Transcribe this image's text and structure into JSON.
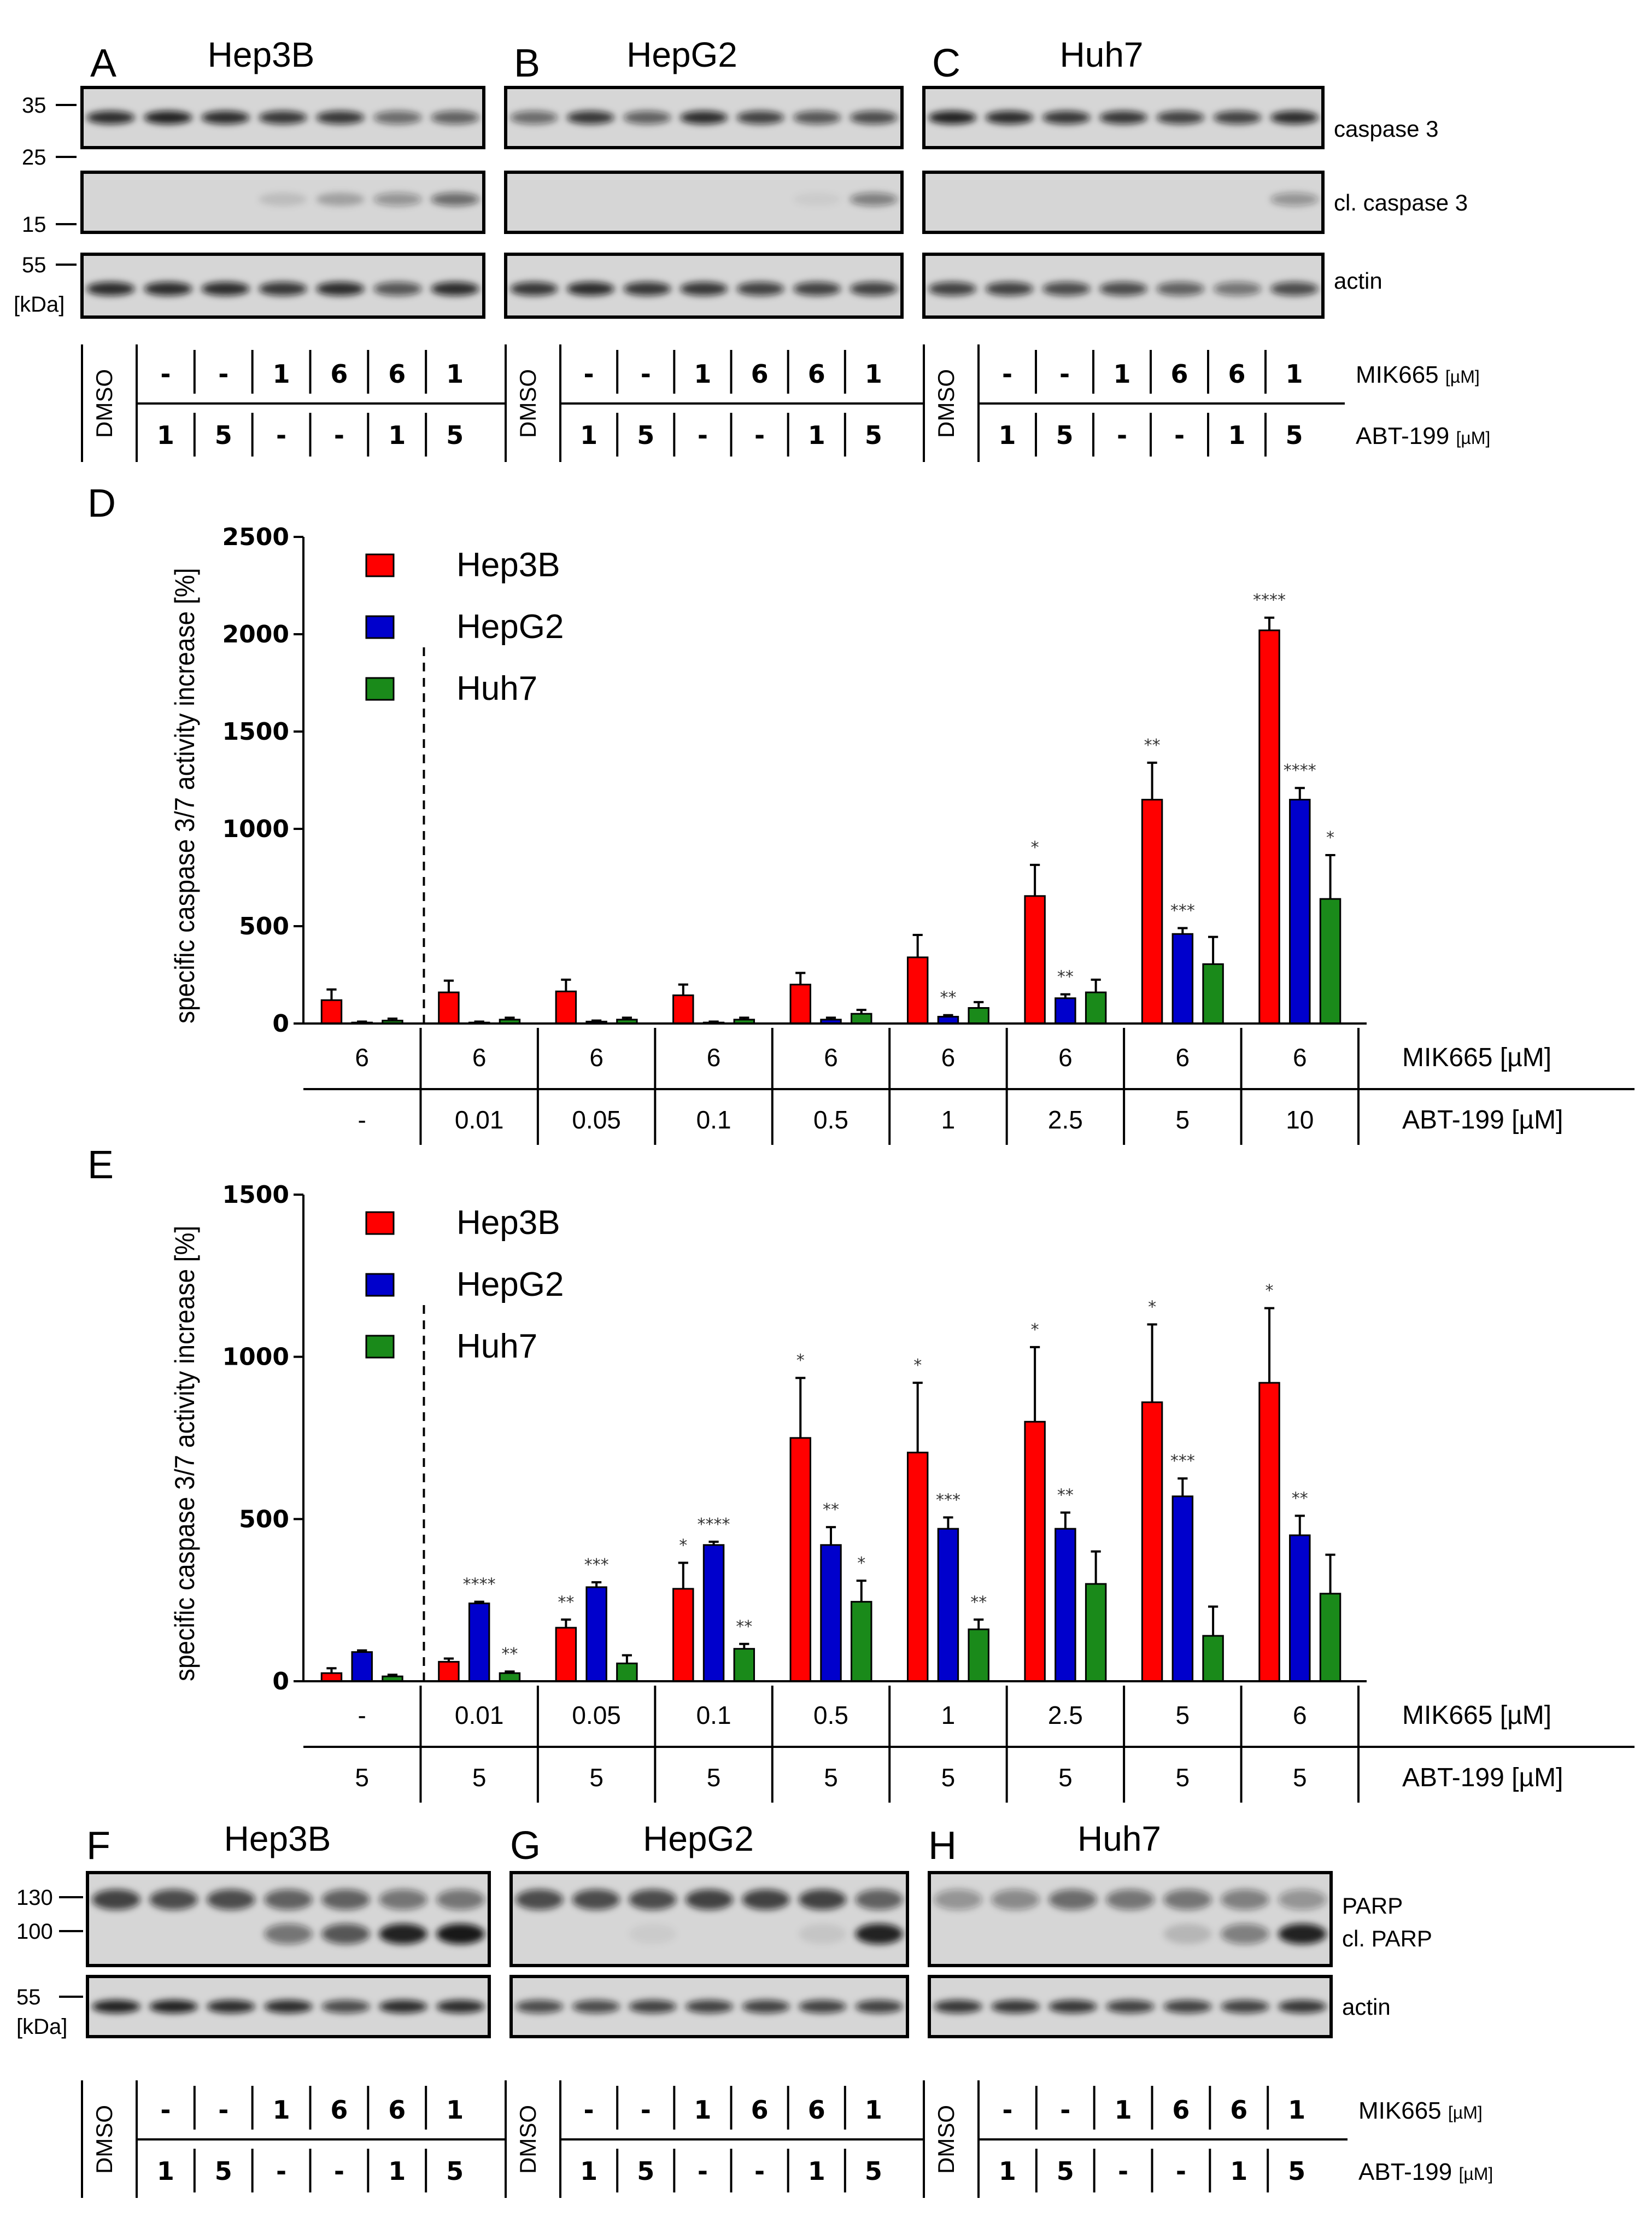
{
  "colors": {
    "hep3b": "#ff0000",
    "hepg2": "#0000cc",
    "huh7": "#1a8a1a"
  },
  "top_blots": {
    "panels": [
      {
        "letter": "A",
        "cell": "Hep3B"
      },
      {
        "letter": "B",
        "cell": "HepG2"
      },
      {
        "letter": "C",
        "cell": "Huh7"
      }
    ],
    "markers": [
      "35",
      "25",
      "15",
      "55",
      "[kDa]"
    ],
    "row_labels": [
      "caspase 3",
      "cl. caspase 3",
      "actin"
    ],
    "conditions": {
      "dmso": "DMSO",
      "mik665": [
        "-",
        "-",
        "1",
        "6",
        "6",
        "1"
      ],
      "abt199": [
        "1",
        "5",
        "-",
        "-",
        "1",
        "5"
      ],
      "mik665_label": "MIK665",
      "abt199_label": "ABT-199",
      "unit": "[µM]"
    }
  },
  "panel_D": {
    "letter": "D",
    "table": {
      "mik665": [
        "6",
        "6",
        "6",
        "6",
        "6",
        "6",
        "6",
        "6",
        "6"
      ],
      "abt199": [
        "-",
        "0.01",
        "0.05",
        "0.1",
        "0.5",
        "1",
        "2.5",
        "5",
        "10"
      ],
      "mik665_label": "MIK665 [µM]",
      "abt199_label": "ABT-199 [µM]"
    }
  },
  "panel_E": {
    "letter": "E",
    "table": {
      "mik665": [
        "-",
        "0.01",
        "0.05",
        "0.1",
        "0.5",
        "1",
        "2.5",
        "5",
        "6"
      ],
      "abt199": [
        "5",
        "5",
        "5",
        "5",
        "5",
        "5",
        "5",
        "5",
        "5"
      ],
      "mik665_label": "MIK665 [µM]",
      "abt199_label": "ABT-199 [µM]"
    }
  },
  "bottom_blots": {
    "panels": [
      {
        "letter": "F",
        "cell": "Hep3B"
      },
      {
        "letter": "G",
        "cell": "HepG2"
      },
      {
        "letter": "H",
        "cell": "Huh7"
      }
    ],
    "markers": [
      "130",
      "100",
      "55",
      "[kDa]"
    ],
    "row_labels": [
      "PARP",
      "cl. PARP",
      "actin"
    ],
    "conditions": {
      "dmso": "DMSO",
      "mik665": [
        "-",
        "-",
        "1",
        "6",
        "6",
        "1"
      ],
      "abt199": [
        "1",
        "5",
        "-",
        "-",
        "1",
        "5"
      ],
      "mik665_label": "MIK665",
      "abt199_label": "ABT-199",
      "unit": "[µM]"
    }
  },
  "chart_data": [
    {
      "type": "bar",
      "panel": "D",
      "ylabel": "specific caspase 3/7 activity increase [%]",
      "ylim": [
        0,
        2500
      ],
      "yticks": [
        0,
        500,
        1000,
        1500,
        2000,
        2500
      ],
      "categories": [
        "MIK665 6 / ABT-199 -",
        "MIK665 6 / ABT-199 0.01",
        "MIK665 6 / ABT-199 0.05",
        "MIK665 6 / ABT-199 0.1",
        "MIK665 6 / ABT-199 0.5",
        "MIK665 6 / ABT-199 1",
        "MIK665 6 / ABT-199 2.5",
        "MIK665 6 / ABT-199 5",
        "MIK665 6 / ABT-199 10"
      ],
      "series": [
        {
          "name": "Hep3B",
          "values": [
            120,
            160,
            165,
            145,
            200,
            340,
            655,
            1150,
            2020
          ],
          "errors": [
            55,
            60,
            60,
            55,
            60,
            115,
            160,
            190,
            65
          ],
          "sig": [
            "",
            "",
            "",
            "",
            "",
            "",
            "*",
            "**",
            "****"
          ]
        },
        {
          "name": "HepG2",
          "values": [
            5,
            5,
            10,
            5,
            20,
            35,
            130,
            460,
            1150
          ],
          "errors": [
            5,
            5,
            5,
            5,
            10,
            8,
            20,
            30,
            60
          ],
          "sig": [
            "",
            "",
            "",
            "",
            "",
            "**",
            "**",
            "***",
            "****"
          ]
        },
        {
          "name": "Huh7",
          "values": [
            15,
            20,
            20,
            20,
            50,
            80,
            160,
            305,
            640
          ],
          "errors": [
            10,
            10,
            10,
            10,
            20,
            30,
            65,
            140,
            225
          ],
          "sig": [
            "",
            "",
            "",
            "",
            "",
            "",
            "",
            "",
            "*"
          ]
        }
      ],
      "legend": [
        "Hep3B",
        "HepG2",
        "Huh7"
      ],
      "legend_position": "top-left"
    },
    {
      "type": "bar",
      "panel": "E",
      "ylabel": "specific caspase 3/7 activity increase [%]",
      "ylim": [
        0,
        1500
      ],
      "yticks": [
        0,
        500,
        1000,
        1500
      ],
      "categories": [
        "MIK665 - / ABT-199 5",
        "MIK665 0.01 / ABT-199 5",
        "MIK665 0.05 / ABT-199 5",
        "MIK665 0.1 / ABT-199 5",
        "MIK665 0.5 / ABT-199 5",
        "MIK665 1 / ABT-199 5",
        "MIK665 2.5 / ABT-199 5",
        "MIK665 5 / ABT-199 5",
        "MIK665 6 / ABT-199 5"
      ],
      "series": [
        {
          "name": "Hep3B",
          "values": [
            25,
            60,
            165,
            285,
            750,
            705,
            800,
            860,
            920
          ],
          "errors": [
            15,
            10,
            25,
            80,
            185,
            215,
            230,
            240,
            230
          ],
          "sig": [
            "",
            "",
            "**",
            "*",
            "*",
            "*",
            "*",
            "*",
            "*"
          ]
        },
        {
          "name": "HepG2",
          "values": [
            90,
            240,
            290,
            420,
            420,
            470,
            470,
            570,
            450
          ],
          "errors": [
            5,
            5,
            15,
            10,
            55,
            35,
            50,
            55,
            60
          ],
          "sig": [
            "",
            "****",
            "***",
            "****",
            "**",
            "***",
            "**",
            "***",
            "**"
          ]
        },
        {
          "name": "Huh7",
          "values": [
            15,
            25,
            55,
            100,
            245,
            160,
            300,
            140,
            270
          ],
          "errors": [
            5,
            5,
            25,
            15,
            65,
            30,
            100,
            90,
            120
          ],
          "sig": [
            "",
            "**",
            "",
            "**",
            "*",
            "**",
            "",
            "",
            ""
          ]
        }
      ],
      "legend": [
        "Hep3B",
        "HepG2",
        "Huh7"
      ],
      "legend_position": "top-left"
    }
  ]
}
